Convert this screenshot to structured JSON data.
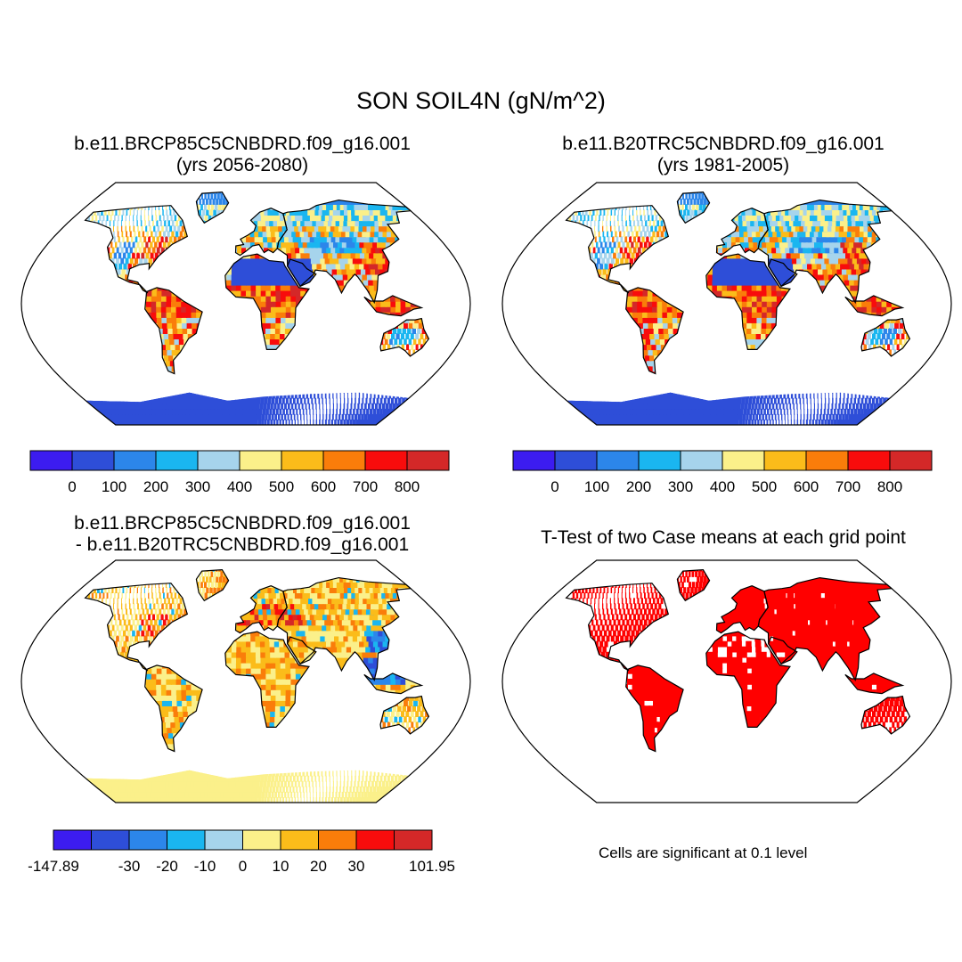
{
  "figure_title": "SON SOIL4N (gN/m^2)",
  "panels": [
    {
      "title_line1": "b.e11.BRCP85C5CNBDRD.f09_g16.001",
      "title_line2": "(yrs 2056-2080)",
      "kind": "field_future"
    },
    {
      "title_line1": "b.e11.B20TRC5CNBDRD.f09_g16.001",
      "title_line2": "(yrs 1981-2005)",
      "kind": "field_hist"
    },
    {
      "title_line1": "b.e11.BRCP85C5CNBDRD.f09_g16.001",
      "title_line2": "- b.e11.B20TRC5CNBDRD.f09_g16.001",
      "kind": "difference"
    },
    {
      "title_line1": "T-Test of two Case means at each grid point",
      "title_line2": "",
      "kind": "ttest"
    }
  ],
  "colorbars": {
    "field": {
      "colors": [
        "#3c1cf0",
        "#2e4ed8",
        "#2c86ea",
        "#1ab6f0",
        "#a6d4ec",
        "#fbf08a",
        "#fbbc1a",
        "#fa7d0a",
        "#f80c0c",
        "#d42828"
      ],
      "labels": [
        "0",
        "100",
        "200",
        "300",
        "400",
        "500",
        "600",
        "700",
        "800"
      ]
    },
    "diff": {
      "colors": [
        "#3c1cf0",
        "#2e4ed8",
        "#2c86ea",
        "#1ab6f0",
        "#a6d4ec",
        "#fbf08a",
        "#fbbc1a",
        "#fa7d0a",
        "#f80c0c",
        "#d42828"
      ],
      "labels": [
        "-147.89",
        "",
        "-30",
        "-20",
        "-10",
        "0",
        "10",
        "20",
        "30",
        "",
        "101.95"
      ]
    }
  },
  "significance_note": "Cells are significant at 0.1 level",
  "significance_color": "#ff0000",
  "map_projection": "Robinson (global, land only)"
}
